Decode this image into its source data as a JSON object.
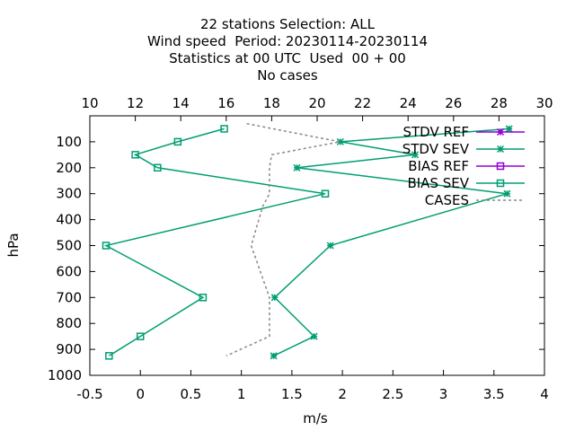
{
  "chart_data": {
    "type": "line",
    "title_lines": [
      "22 stations Selection: ALL",
      "Wind speed  Period: 20230114-20230114",
      "Statistics at 00 UTC  Used  00 + 00",
      "No cases"
    ],
    "xlabel": "m/s",
    "ylabel": "hPa",
    "x_bottom": {
      "range": [
        -0.5,
        4
      ],
      "ticks": [
        "-0.5",
        "0",
        "0.5",
        "1",
        "1.5",
        "2",
        "2.5",
        "3",
        "3.5",
        "4"
      ]
    },
    "x_top": {
      "range": [
        10,
        30
      ],
      "ticks": [
        "10",
        "12",
        "14",
        "16",
        "18",
        "20",
        "22",
        "24",
        "26",
        "28",
        "30"
      ]
    },
    "y": {
      "range": [
        1000,
        0
      ],
      "ticks": [
        "100",
        "200",
        "300",
        "400",
        "500",
        "600",
        "700",
        "800",
        "900",
        "1000"
      ]
    },
    "grid": false,
    "legend_position": "top-right",
    "series": [
      {
        "name": "STDV REF",
        "color": "#9400d3",
        "marker": "star",
        "axis": "bottom",
        "points": []
      },
      {
        "name": "STDV SEV",
        "color": "#009e73",
        "marker": "star",
        "axis": "bottom",
        "points": [
          [
            3.65,
            50
          ],
          [
            1.98,
            100
          ],
          [
            2.72,
            150
          ],
          [
            1.55,
            200
          ],
          [
            3.63,
            300
          ],
          [
            1.88,
            500
          ],
          [
            1.33,
            700
          ],
          [
            1.72,
            850
          ],
          [
            1.32,
            925
          ]
        ]
      },
      {
        "name": "BIAS REF",
        "color": "#9400d3",
        "marker": "square",
        "axis": "bottom",
        "points": []
      },
      {
        "name": "BIAS SEV",
        "color": "#009e73",
        "marker": "square",
        "axis": "bottom",
        "points": [
          [
            0.83,
            50
          ],
          [
            0.37,
            100
          ],
          [
            -0.05,
            150
          ],
          [
            0.17,
            200
          ],
          [
            1.83,
            300
          ],
          [
            -0.34,
            500
          ],
          [
            0.62,
            700
          ],
          [
            0.0,
            850
          ],
          [
            -0.31,
            925
          ]
        ]
      },
      {
        "name": "CASES",
        "color": "#888888",
        "marker": "none",
        "dash": true,
        "axis": "top",
        "points": [
          [
            16.9,
            30
          ],
          [
            21.0,
            100
          ],
          [
            18.0,
            150
          ],
          [
            17.9,
            200
          ],
          [
            17.9,
            300
          ],
          [
            17.6,
            350
          ],
          [
            17.1,
            500
          ],
          [
            17.9,
            700
          ],
          [
            17.9,
            850
          ],
          [
            16.0,
            925
          ]
        ]
      }
    ]
  }
}
